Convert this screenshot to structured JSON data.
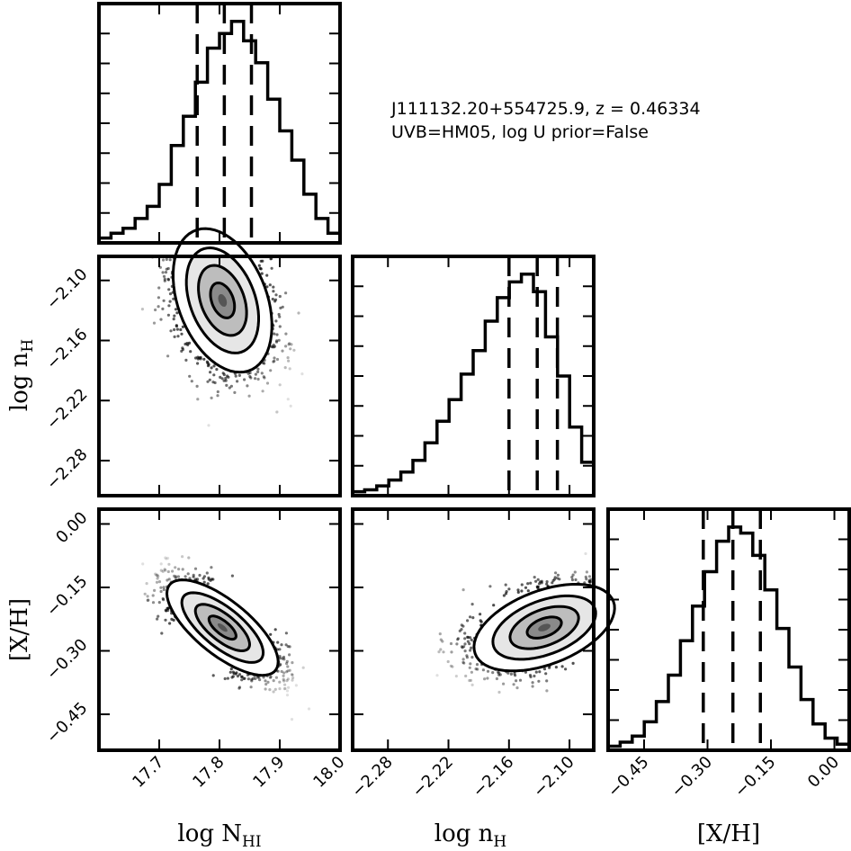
{
  "title": {
    "line1": "J111132.20+554725.9, z = 0.46334",
    "line2": "UVB=HM05, log U prior=False"
  },
  "chart_data": {
    "type": "corner",
    "parameters": [
      {
        "label": "log N_HI",
        "label_main": "log N",
        "label_sub": "HI",
        "range": [
          17.6,
          18.0
        ],
        "ticks": [
          "17.7",
          "17.8",
          "17.9",
          "18.0"
        ],
        "tick_values": [
          17.7,
          17.8,
          17.9,
          18.0
        ],
        "quantiles": [
          17.763,
          17.808,
          17.853
        ]
      },
      {
        "label": "log n_H",
        "label_main": "log n",
        "label_sub": "H",
        "range": [
          -2.315,
          -2.076
        ],
        "ticks": [
          "−2.28",
          "−2.22",
          "−2.16",
          "−2.10"
        ],
        "tick_values": [
          -2.28,
          -2.22,
          -2.16,
          -2.1
        ],
        "quantiles": [
          -2.16,
          -2.132,
          -2.112
        ]
      },
      {
        "label": "[X/H]",
        "label_main": "[X/H]",
        "label_sub": "",
        "range": [
          -0.535,
          0.035
        ],
        "ticks": [
          "−0.45",
          "−0.30",
          "−0.15",
          "0.00"
        ],
        "tick_values": [
          -0.45,
          -0.3,
          -0.15,
          0.0
        ],
        "quantiles": [
          -0.31,
          -0.24,
          -0.175
        ]
      }
    ],
    "histograms": [
      {
        "param": "log N_HI",
        "bins": 20,
        "counts": [
          2,
          4,
          6,
          10,
          15,
          24,
          40,
          52,
          66,
          80,
          86,
          91,
          83,
          74,
          59,
          46,
          34,
          20,
          10,
          4
        ]
      },
      {
        "param": "log n_H",
        "bins": 20,
        "counts": [
          2,
          3,
          5,
          8,
          12,
          18,
          27,
          38,
          49,
          62,
          74,
          89,
          101,
          109,
          113,
          104,
          81,
          61,
          35,
          17
        ]
      },
      {
        "param": "[X/H]",
        "bins": 20,
        "counts": [
          2,
          4,
          7,
          14,
          24,
          37,
          54,
          71,
          88,
          103,
          110,
          107,
          96,
          79,
          60,
          41,
          25,
          13,
          6,
          3
        ]
      }
    ],
    "joint": [
      {
        "x": "log N_HI",
        "y": "log n_H",
        "center": [
          17.805,
          -2.12
        ],
        "sd": [
          0.04,
          0.035
        ],
        "rho": -0.35
      },
      {
        "x": "log N_HI",
        "y": "[X/H]",
        "center": [
          17.805,
          -0.245
        ],
        "sd": [
          0.045,
          0.055
        ],
        "rho": -0.72
      },
      {
        "x": "log n_H",
        "y": "[X/H]",
        "center": [
          -2.125,
          -0.245
        ],
        "sd": [
          0.034,
          0.05
        ],
        "rho": 0.45
      }
    ],
    "contour_levels": [
      0.5,
      1.0,
      1.5,
      2.0
    ],
    "quantile_line_style": "dashed"
  }
}
